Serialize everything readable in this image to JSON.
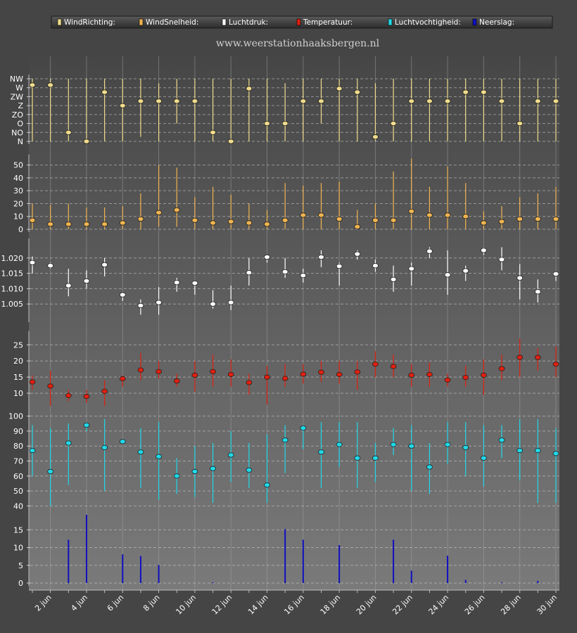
{
  "header": {
    "site": "www.weerstationhaaksbergen.nl",
    "legend": [
      {
        "label": "WindRichting:",
        "color": "#f0dc8c"
      },
      {
        "label": "WindSnelheid:",
        "color": "#f0b450"
      },
      {
        "label": "Luchtdruk:",
        "color": "#ffffff"
      },
      {
        "label": "Temperatuur:",
        "color": "#e02010"
      },
      {
        "label": "Luchtvochtigheid:",
        "color": "#20d8e8"
      },
      {
        "label": "Neerslag:",
        "color": "#1010c0"
      }
    ]
  },
  "chart_data": {
    "type": "multi-panel",
    "x_labels": [
      "2 jun",
      "4 jun",
      "6 jun",
      "8 jun",
      "10 jun",
      "12 jun",
      "14 jun",
      "16 jun",
      "18 jun",
      "20 jun",
      "22 jun",
      "24 jun",
      "26 jun",
      "28 jun",
      "30 jun"
    ],
    "x_label_days": [
      2,
      4,
      6,
      8,
      10,
      12,
      14,
      16,
      18,
      20,
      22,
      24,
      26,
      28,
      30
    ],
    "days": [
      1,
      2,
      3,
      4,
      5,
      6,
      7,
      8,
      9,
      10,
      11,
      12,
      13,
      14,
      15,
      16,
      17,
      18,
      19,
      20,
      21,
      22,
      23,
      24,
      25,
      26,
      27,
      28,
      29,
      30
    ],
    "panels": [
      {
        "name": "WindRichting",
        "type": "scatter-range",
        "color": "#f0dc8c",
        "y_ticks": [
          "N",
          "NO",
          "O",
          "ZO",
          "Z",
          "ZW",
          "W",
          "NW"
        ],
        "ylim": [
          0,
          7
        ],
        "values": [
          6.3,
          6.3,
          1.0,
          0.0,
          5.5,
          4.0,
          4.5,
          4.5,
          4.5,
          4.5,
          1.0,
          0.0,
          5.9,
          2.0,
          2.0,
          4.5,
          4.5,
          5.9,
          5.5,
          0.5,
          2.0,
          4.5,
          4.5,
          4.5,
          5.5,
          5.5,
          4.5,
          2.0,
          4.5,
          4.5
        ],
        "low": [
          0,
          0,
          0,
          0,
          0,
          0,
          0.5,
          0,
          2.0,
          0,
          0,
          0,
          0,
          0,
          0,
          0,
          2.0,
          0,
          0,
          0,
          0,
          0,
          0,
          0,
          0,
          0,
          0,
          0,
          0,
          0
        ],
        "high": [
          7,
          7,
          7,
          7,
          7,
          7,
          7,
          6.5,
          7,
          7,
          7,
          7,
          7,
          7,
          6.5,
          7,
          7,
          7,
          7,
          6.5,
          7,
          7,
          7,
          7,
          7,
          7,
          7,
          7,
          7,
          7
        ]
      },
      {
        "name": "WindSnelheid",
        "type": "scatter-range",
        "color": "#f0b450",
        "y_ticks": [
          0,
          10,
          20,
          30,
          40,
          50
        ],
        "ylim": [
          0,
          55
        ],
        "values": [
          7,
          4,
          4,
          4,
          4,
          5,
          8,
          13,
          15,
          7,
          5,
          6,
          5,
          4,
          7,
          11,
          11,
          8,
          2,
          7,
          7,
          14,
          11,
          11,
          10,
          5,
          6,
          8,
          8,
          8
        ],
        "low": [
          0,
          0,
          0,
          0,
          0,
          0,
          0,
          2,
          2,
          0,
          0,
          0,
          0,
          0,
          0,
          0,
          0,
          0,
          0,
          0,
          0,
          0,
          0,
          0,
          0,
          0,
          0,
          0,
          0,
          0
        ],
        "high": [
          20,
          19,
          20,
          17,
          17,
          18,
          28,
          50,
          48,
          25,
          33,
          27,
          20,
          15,
          36,
          34,
          36,
          37,
          15,
          20,
          45,
          55,
          33,
          49,
          36,
          14,
          18,
          25,
          28,
          33
        ]
      },
      {
        "name": "Luchtdruk",
        "type": "scatter-range",
        "color": "#ffffff",
        "y_ticks": [
          1.005,
          1.01,
          1.015,
          1.02
        ],
        "y_tick_labels": [
          "1.005",
          "1.010",
          "1.015",
          "1.020"
        ],
        "ylim": [
          1.0,
          1.025
        ],
        "values": [
          1.0185,
          1.0175,
          1.011,
          1.0125,
          1.0178,
          1.008,
          1.0045,
          1.0055,
          1.012,
          1.0118,
          1.005,
          1.0055,
          1.0152,
          1.0203,
          1.0155,
          1.0143,
          1.0203,
          1.0173,
          1.0213,
          1.0175,
          1.013,
          1.0165,
          1.0222,
          1.0145,
          1.0158,
          1.0225,
          1.0195,
          1.0135,
          1.009,
          1.0148
        ],
        "low": [
          1.015,
          1.0165,
          1.0075,
          1.01,
          1.014,
          1.006,
          1.0015,
          1.0015,
          1.009,
          1.008,
          1.0035,
          1.003,
          1.011,
          1.0185,
          1.0135,
          1.012,
          1.017,
          1.011,
          1.0195,
          1.0155,
          1.009,
          1.011,
          1.02,
          1.008,
          1.0125,
          1.021,
          1.016,
          1.0065,
          1.0055,
          1.0125
        ],
        "high": [
          1.0205,
          1.0185,
          1.0165,
          1.016,
          1.02,
          1.0085,
          1.0065,
          1.0105,
          1.0135,
          1.0125,
          1.0095,
          1.011,
          1.02,
          1.021,
          1.02,
          1.0165,
          1.0225,
          1.0185,
          1.0225,
          1.0195,
          1.0175,
          1.0185,
          1.0235,
          1.0225,
          1.0175,
          1.0235,
          1.0235,
          1.018,
          1.013,
          1.015
        ]
      },
      {
        "name": "Temperatuur",
        "type": "scatter-range",
        "color": "#e02010",
        "y_ticks": [
          10,
          15,
          20,
          25
        ],
        "ylim": [
          5,
          28
        ],
        "values": [
          13.5,
          12.2,
          9.3,
          9.0,
          10.6,
          14.5,
          17.2,
          16.7,
          13.8,
          15.6,
          16.7,
          15.8,
          13.3,
          15.0,
          14.6,
          15.9,
          16.5,
          15.8,
          16.6,
          19.0,
          18.3,
          15.6,
          15.8,
          14.1,
          14.9,
          15.6,
          17.6,
          21.1,
          21.1,
          19.0
        ],
        "low": [
          11,
          6,
          7.5,
          7,
          6,
          12,
          14,
          14.5,
          12,
          10.5,
          12,
          12,
          9.5,
          6.5,
          12,
          13,
          13.5,
          13,
          11,
          15,
          15,
          12,
          12,
          12,
          12,
          9.5,
          14,
          15,
          17,
          15
        ],
        "high": [
          15.5,
          17,
          11,
          11,
          14,
          15.5,
          22.5,
          20,
          16,
          20,
          22,
          20.5,
          16,
          18.5,
          19,
          19,
          20,
          20,
          20,
          23,
          22,
          19,
          19.5,
          16,
          18.5,
          20.5,
          22,
          27,
          24,
          24.5
        ]
      },
      {
        "name": "Luchtvochtigheid",
        "type": "scatter-range",
        "color": "#20d8e8",
        "y_ticks": [
          40,
          50,
          60,
          70,
          80,
          90,
          100
        ],
        "ylim": [
          35,
          105
        ],
        "values": [
          77,
          63,
          82,
          94,
          79,
          83,
          76,
          73,
          60,
          63,
          65,
          74,
          64,
          54,
          84,
          92,
          76,
          81,
          72,
          72,
          81,
          80,
          66,
          81,
          79,
          72,
          84,
          77,
          77,
          75
        ],
        "low": [
          60,
          40,
          54,
          90,
          50,
          82,
          52,
          44,
          48,
          46,
          42,
          56,
          52,
          42,
          62,
          78,
          52,
          66,
          52,
          56,
          74,
          50,
          48,
          68,
          60,
          53,
          72,
          57,
          42,
          42
        ],
        "high": [
          94,
          92,
          95,
          96,
          98,
          84,
          92,
          96,
          72,
          80,
          82,
          90,
          82,
          88,
          94,
          94,
          96,
          96,
          96,
          82,
          92,
          94,
          82,
          96,
          96,
          94,
          94,
          98,
          98,
          92
        ]
      },
      {
        "name": "Neerslag",
        "type": "bar",
        "color": "#1010c0",
        "y_ticks": [
          0,
          5,
          10,
          15
        ],
        "ylim": [
          0,
          20
        ],
        "values": [
          0,
          0,
          12.2,
          19.2,
          0,
          8.1,
          7.6,
          5.1,
          0,
          0,
          0.2,
          0,
          0,
          0,
          15.2,
          12.2,
          0,
          10.7,
          0,
          0,
          12.2,
          3.5,
          0,
          7.7,
          0.9,
          0,
          0.2,
          0,
          0.6,
          0
        ]
      }
    ]
  }
}
